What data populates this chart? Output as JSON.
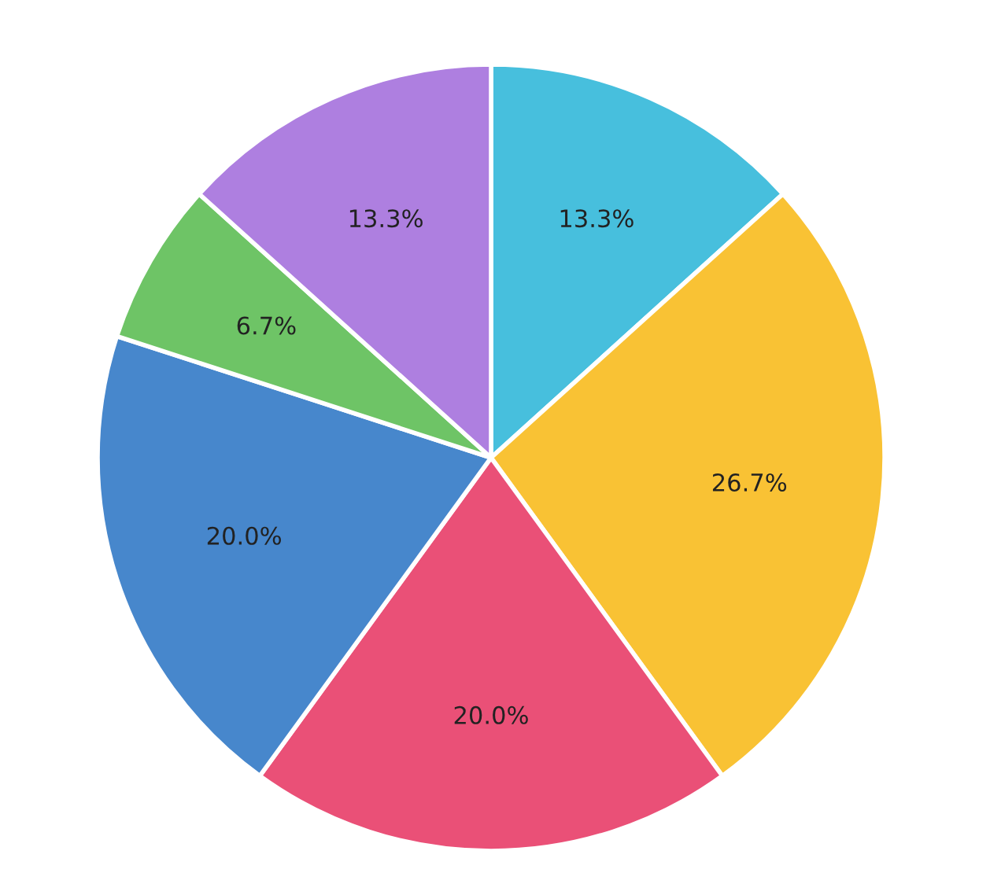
{
  "chart_data": {
    "type": "pie",
    "categories": [
      null,
      null,
      null,
      null,
      null,
      null
    ],
    "values": [
      13.3,
      26.7,
      20.0,
      20.0,
      6.7,
      13.3
    ],
    "colors": [
      "#47bfdd",
      "#f9c234",
      "#ea5077",
      "#4787cc",
      "#6ec466",
      "#ae7fe0"
    ],
    "value_labels": [
      "13.3%",
      "26.7%",
      "20.0%",
      "20.0%",
      "6.7%",
      "13.3%"
    ],
    "legend": false
  }
}
